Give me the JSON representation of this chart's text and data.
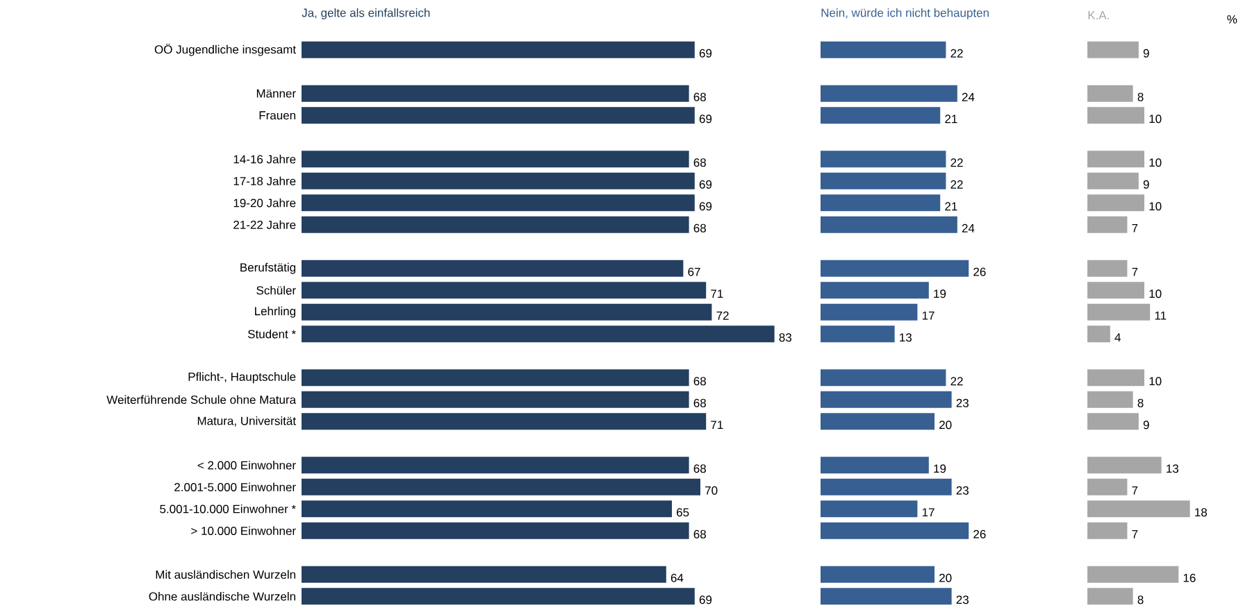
{
  "chart_data": [
    {
      "type": "bar",
      "orientation": "horizontal",
      "title": "Ja, gelte als einfallsreich",
      "color": "#243f60",
      "data_labels": true,
      "categories": [
        "OÖ Jugendliche insgesamt",
        null,
        "Männer",
        "Frauen",
        null,
        "14-16 Jahre",
        "17-18 Jahre",
        "19-20 Jahre",
        "21-22 Jahre",
        null,
        "Berufstätig",
        "Schüler",
        "Lehrling",
        "Student *",
        null,
        "Pflicht-, Hauptschule",
        "Weiterführende Schule ohne Matura",
        "Matura, Universität",
        null,
        "< 2.000 Einwohner",
        "2.001-5.000 Einwohner",
        "5.001-10.000 Einwohner *",
        "> 10.000 Einwohner",
        null,
        "Mit ausländischen Wurzeln",
        "Ohne ausländische Wurzeln"
      ],
      "values": [
        69,
        null,
        68,
        69,
        null,
        68,
        69,
        69,
        68,
        null,
        67,
        71,
        72,
        83,
        null,
        68,
        68,
        71,
        null,
        68,
        70,
        65,
        68,
        null,
        64,
        69
      ]
    },
    {
      "type": "bar",
      "orientation": "horizontal",
      "title": "Nein, würde ich nicht behaupten",
      "color": "#375f92",
      "data_labels": true,
      "categories": [
        null,
        null,
        null,
        null,
        null,
        null,
        null,
        null,
        null,
        null,
        null,
        null,
        null,
        null,
        null,
        null,
        null,
        null,
        null,
        null,
        null,
        null,
        null,
        null,
        null,
        null
      ],
      "values": [
        22,
        null,
        24,
        21,
        null,
        22,
        22,
        21,
        24,
        null,
        26,
        19,
        17,
        13,
        null,
        22,
        23,
        20,
        null,
        19,
        23,
        17,
        26,
        null,
        20,
        23
      ]
    },
    {
      "type": "bar",
      "orientation": "horizontal",
      "title": "K.A.",
      "color": "#a6a6a6",
      "data_labels": true,
      "annotations": [
        "%"
      ],
      "categories": [
        null,
        null,
        null,
        null,
        null,
        null,
        null,
        null,
        null,
        null,
        null,
        null,
        null,
        null,
        null,
        null,
        null,
        null,
        null,
        null,
        null,
        null,
        null,
        null,
        null,
        null
      ],
      "values": [
        9,
        null,
        8,
        10,
        null,
        10,
        9,
        10,
        7,
        null,
        7,
        10,
        11,
        4,
        null,
        10,
        8,
        9,
        null,
        13,
        7,
        18,
        7,
        null,
        16,
        8
      ]
    }
  ]
}
